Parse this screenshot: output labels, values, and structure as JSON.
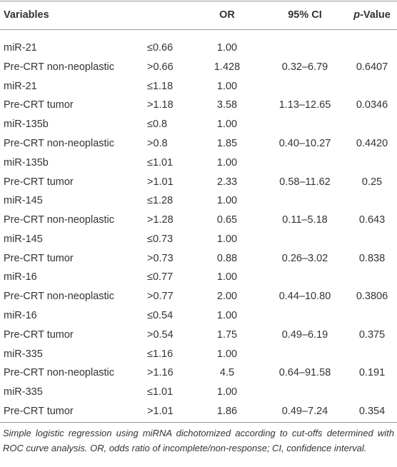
{
  "table": {
    "header": [
      "Variables",
      "OR",
      "95% CI",
      "p-Value"
    ],
    "rows": [
      [
        "miR-21",
        "≤0.66",
        "1.00"
      ],
      [
        "Pre-CRT non-neoplastic",
        ">0.66",
        "1.428",
        "0.32–6.79",
        "0.6407"
      ],
      [
        "miR-21",
        "≤1.18",
        "1.00"
      ],
      [
        "Pre-CRT tumor",
        ">1.18",
        "3.58",
        "1.13–12.65",
        "0.0346"
      ],
      [
        "miR-135b",
        "≤0.8",
        "1.00"
      ],
      [
        "Pre-CRT non-neoplastic",
        ">0.8",
        "1.85",
        "0.40–10.27",
        "0.4420"
      ],
      [
        "miR-135b",
        "≤1.01",
        "1.00"
      ],
      [
        "Pre-CRT tumor",
        ">1.01",
        "2.33",
        "0.58–11.62",
        "0.25"
      ],
      [
        "miR-145",
        "≤1.28",
        "1.00"
      ],
      [
        "Pre-CRT non-neoplastic",
        ">1.28",
        "0.65",
        "0.11–5.18",
        "0.643"
      ],
      [
        "miR-145",
        "≤0.73",
        "1.00"
      ],
      [
        "Pre-CRT tumor",
        ">0.73",
        "0.88",
        "0.26–3.02",
        "0.838"
      ],
      [
        "miR-16",
        "≤0.77",
        "1.00"
      ],
      [
        "Pre-CRT non-neoplastic",
        ">0.77",
        "2.00",
        "0.44–10.80",
        "0.3806"
      ],
      [
        "miR-16",
        "≤0.54",
        "1.00"
      ],
      [
        "Pre-CRT tumor",
        ">0.54",
        "1.75",
        "0.49–6.19",
        "0.375"
      ],
      [
        "miR-335",
        "≤1.16",
        "1.00"
      ],
      [
        "Pre-CRT non-neoplastic",
        ">1.16",
        "4.5",
        "0.64–91.58",
        "0.191"
      ],
      [
        "miR-335",
        "≤1.01",
        "1.00"
      ],
      [
        "Pre-CRT tumor",
        ">1.01",
        "1.86",
        "0.49–7.24",
        "0.354"
      ]
    ],
    "caption": "Simple logistic regression using miRNA dichotomized according to cut-offs determined with ROC curve analysis. OR, odds ratio of incomplete/non-response; CI, confidence interval."
  }
}
